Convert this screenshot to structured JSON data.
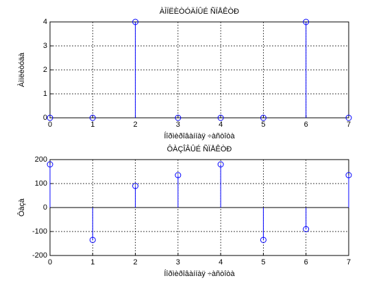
{
  "chart_data": [
    {
      "type": "stem",
      "title": "ÀÌÏËÈÒÓÄÍÛÉ ÑÏÅÊÒÐ",
      "xlabel": "Íîðìèðîâàííàÿ ÷àñòîòà",
      "ylabel": "Àìïëèòóäà",
      "x": [
        0,
        1,
        2,
        3,
        4,
        5,
        6,
        7
      ],
      "values": [
        0,
        0,
        4,
        0,
        0,
        0,
        4,
        0
      ],
      "color": "#0000ff",
      "xlim": [
        0,
        7
      ],
      "ylim": [
        0,
        4
      ],
      "xticks": [
        0,
        1,
        2,
        3,
        4,
        5,
        6,
        7
      ],
      "yticks": [
        0,
        1,
        2,
        3,
        4
      ],
      "grid": true
    },
    {
      "type": "stem",
      "title": "ÔÀÇÎÂÛÉ ÑÏÅÊÒÐ",
      "xlabel": "Íîðìèðîâàííàÿ ÷àñòîòà",
      "ylabel": "Ôàçà",
      "x": [
        0,
        1,
        2,
        3,
        4,
        5,
        6,
        7
      ],
      "values": [
        180,
        -135,
        90,
        135,
        180,
        -135,
        -90,
        135
      ],
      "color": "#0000ff",
      "xlim": [
        0,
        7
      ],
      "ylim": [
        -200,
        200
      ],
      "xticks": [
        0,
        1,
        2,
        3,
        4,
        5,
        6,
        7
      ],
      "yticks": [
        -200,
        -100,
        0,
        100,
        200
      ],
      "grid": true
    }
  ]
}
